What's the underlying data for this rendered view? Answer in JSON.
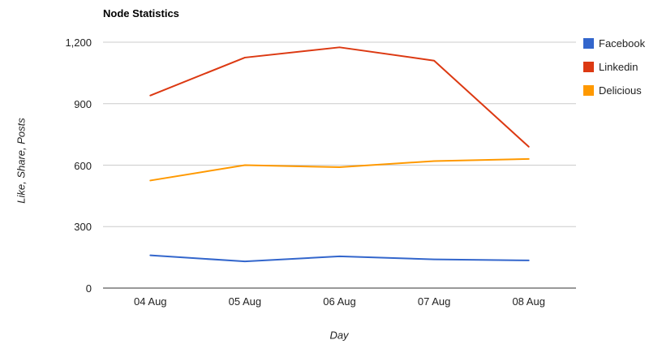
{
  "chart_data": {
    "type": "line",
    "title": "Node Statistics",
    "xlabel": "Day",
    "ylabel": "Like, Share, Posts",
    "categories": [
      "04 Aug",
      "05 Aug",
      "06 Aug",
      "07 Aug",
      "08 Aug"
    ],
    "series": [
      {
        "name": "Facebook",
        "color": "#3366CC",
        "values": [
          160,
          130,
          155,
          140,
          135
        ]
      },
      {
        "name": "Linkedin",
        "color": "#DC3912",
        "values": [
          940,
          1125,
          1175,
          1110,
          690
        ]
      },
      {
        "name": "Delicious",
        "color": "#FF9900",
        "values": [
          525,
          600,
          590,
          620,
          630
        ]
      }
    ],
    "ylim": [
      0,
      1200
    ],
    "y_ticks": [
      0,
      300,
      600,
      900,
      1200
    ],
    "y_tick_labels": [
      "0",
      "300",
      "600",
      "900",
      "1,200"
    ],
    "grid": true,
    "legend_position": "right",
    "colors": {
      "gridline": "#CCCCCC",
      "baseline": "#333333",
      "text": "#222222",
      "title": "#000000"
    }
  }
}
